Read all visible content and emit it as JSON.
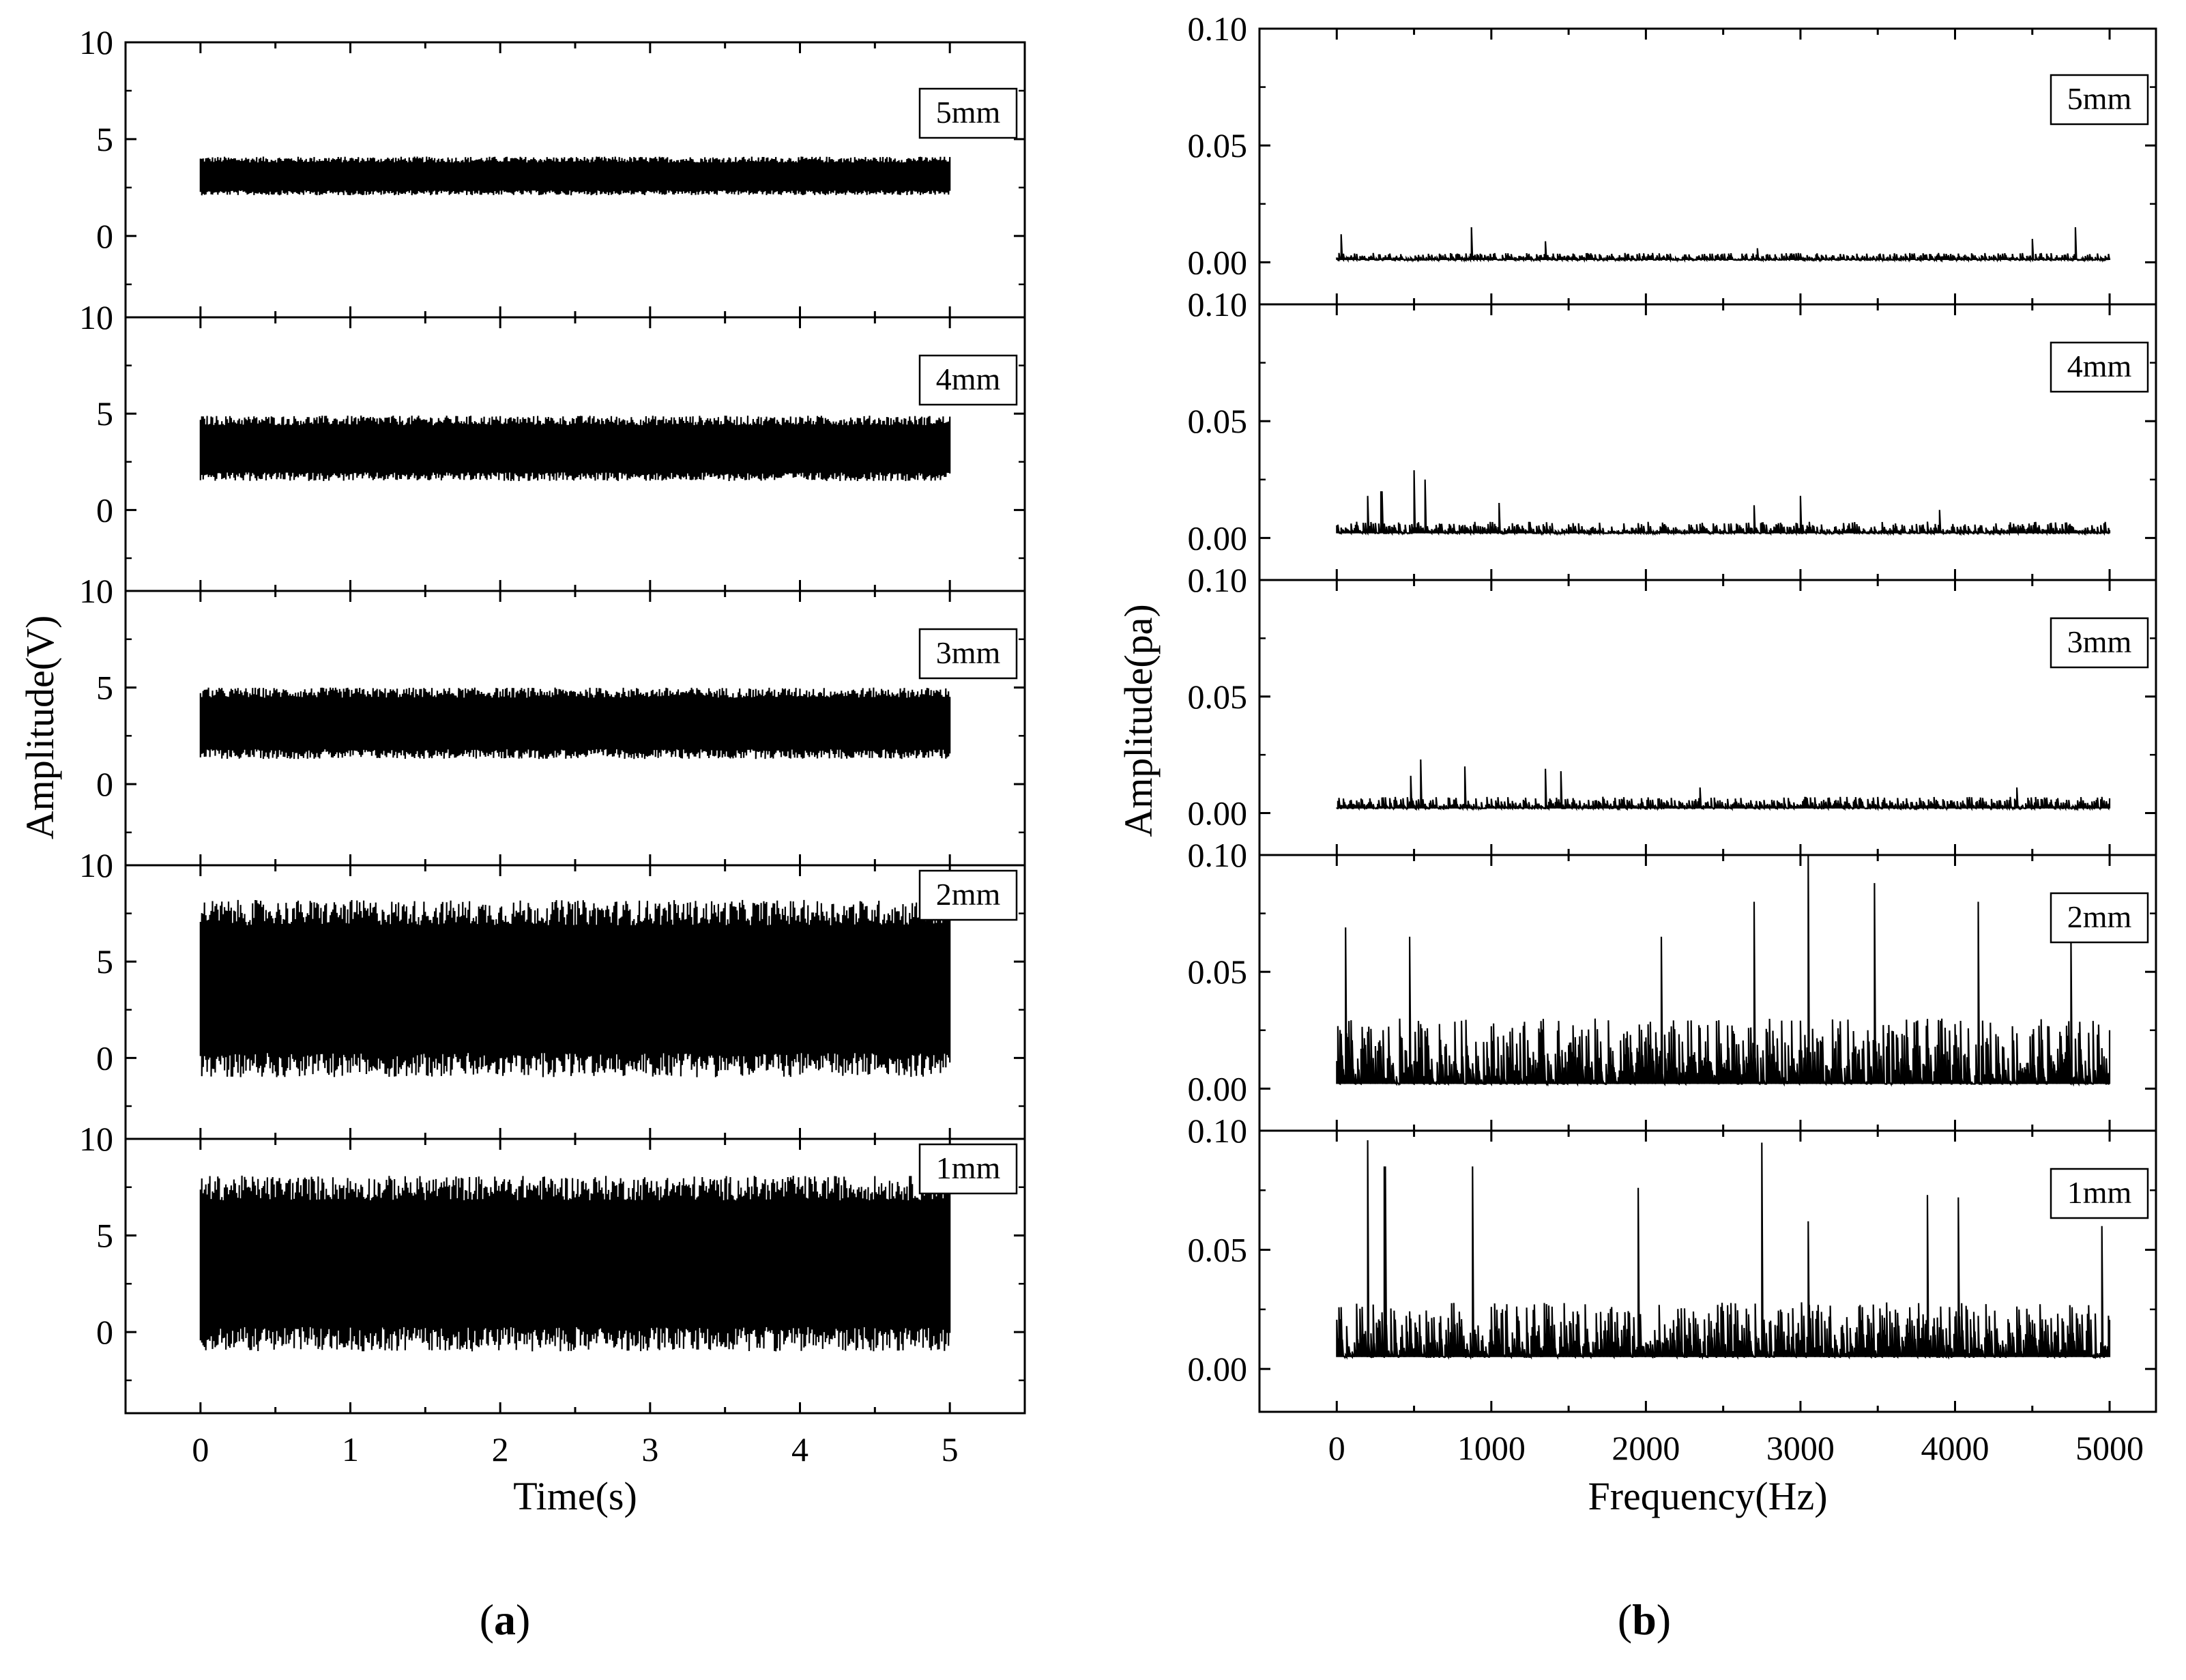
{
  "figure": {
    "captions": [
      {
        "open": "(",
        "letter": "a",
        "close": ")"
      },
      {
        "open": "(",
        "letter": "b",
        "close": ")"
      }
    ]
  },
  "chart_data": [
    {
      "type": "line",
      "xlabel": "Time(s)",
      "ylabel": "Amplitude(V)",
      "xlim": [
        -0.5,
        5.5
      ],
      "xticks": [
        0,
        1,
        2,
        3,
        4,
        5
      ],
      "xtick_labels": [
        "0",
        "1",
        "2",
        "3",
        "4",
        "5"
      ],
      "ylim": [
        -4.2,
        10
      ],
      "yticks": [
        0,
        5,
        10
      ],
      "ytick_labels": [
        "0",
        "5",
        "10"
      ],
      "stacked": "vertical",
      "series": [
        {
          "name": "5mm",
          "x_range": [
            0,
            5
          ],
          "center": 3.0,
          "low": 2.1,
          "high": 4.1
        },
        {
          "name": "4mm",
          "x_range": [
            0,
            5
          ],
          "center": 3.1,
          "low": 1.5,
          "high": 4.9
        },
        {
          "name": "3mm",
          "x_range": [
            0,
            5
          ],
          "center": 3.1,
          "low": 1.3,
          "high": 5.0
        },
        {
          "name": "2mm",
          "x_range": [
            0,
            5
          ],
          "center": 3.5,
          "low": -1.0,
          "high": 8.2
        },
        {
          "name": "1mm",
          "x_range": [
            0,
            5
          ],
          "center": 3.5,
          "low": -1.0,
          "high": 8.1
        }
      ]
    },
    {
      "type": "line",
      "xlabel": "Frequency(Hz)",
      "ylabel": "Amplitude(pa)",
      "xlim": [
        -500,
        5300
      ],
      "xticks": [
        0,
        1000,
        2000,
        3000,
        4000,
        5000
      ],
      "xtick_labels": [
        "0",
        "1000",
        "2000",
        "3000",
        "4000",
        "5000"
      ],
      "ylim": [
        -0.018,
        0.1
      ],
      "yticks": [
        0,
        0.05,
        0.1
      ],
      "ytick_labels": [
        "0.00",
        "0.05",
        "0.10"
      ],
      "stacked": "vertical",
      "series": [
        {
          "name": "5mm",
          "x_range": [
            0,
            5000
          ],
          "floor": 0.001,
          "typical": 0.004,
          "peaks": [
            [
              30,
              0.012
            ],
            [
              870,
              0.015
            ],
            [
              1350,
              0.009
            ],
            [
              2720,
              0.006
            ],
            [
              4500,
              0.01
            ],
            [
              4780,
              0.015
            ]
          ]
        },
        {
          "name": "4mm",
          "x_range": [
            0,
            5000
          ],
          "floor": 0.002,
          "typical": 0.007,
          "peaks": [
            [
              200,
              0.018
            ],
            [
              290,
              0.02
            ],
            [
              500,
              0.029
            ],
            [
              570,
              0.025
            ],
            [
              1050,
              0.015
            ],
            [
              2700,
              0.014
            ],
            [
              3000,
              0.018
            ],
            [
              3900,
              0.012
            ]
          ]
        },
        {
          "name": "3mm",
          "x_range": [
            0,
            5000
          ],
          "floor": 0.002,
          "typical": 0.007,
          "peaks": [
            [
              480,
              0.016
            ],
            [
              540,
              0.023
            ],
            [
              830,
              0.02
            ],
            [
              1350,
              0.019
            ],
            [
              1450,
              0.018
            ],
            [
              2350,
              0.011
            ],
            [
              4400,
              0.011
            ]
          ]
        },
        {
          "name": "2mm",
          "x_range": [
            0,
            5000
          ],
          "floor": 0.002,
          "typical": 0.03,
          "peaks": [
            [
              60,
              0.069
            ],
            [
              470,
              0.065
            ],
            [
              2100,
              0.065
            ],
            [
              2700,
              0.08
            ],
            [
              3050,
              0.1
            ],
            [
              3480,
              0.088
            ],
            [
              4150,
              0.08
            ],
            [
              4750,
              0.065
            ]
          ]
        },
        {
          "name": "1mm",
          "x_range": [
            0,
            5000
          ],
          "floor": 0.005,
          "typical": 0.028,
          "peaks": [
            [
              200,
              0.096
            ],
            [
              310,
              0.085
            ],
            [
              880,
              0.085
            ],
            [
              1950,
              0.076
            ],
            [
              2750,
              0.095
            ],
            [
              3050,
              0.062
            ],
            [
              3820,
              0.073
            ],
            [
              4020,
              0.072
            ],
            [
              4950,
              0.06
            ]
          ]
        }
      ]
    }
  ]
}
